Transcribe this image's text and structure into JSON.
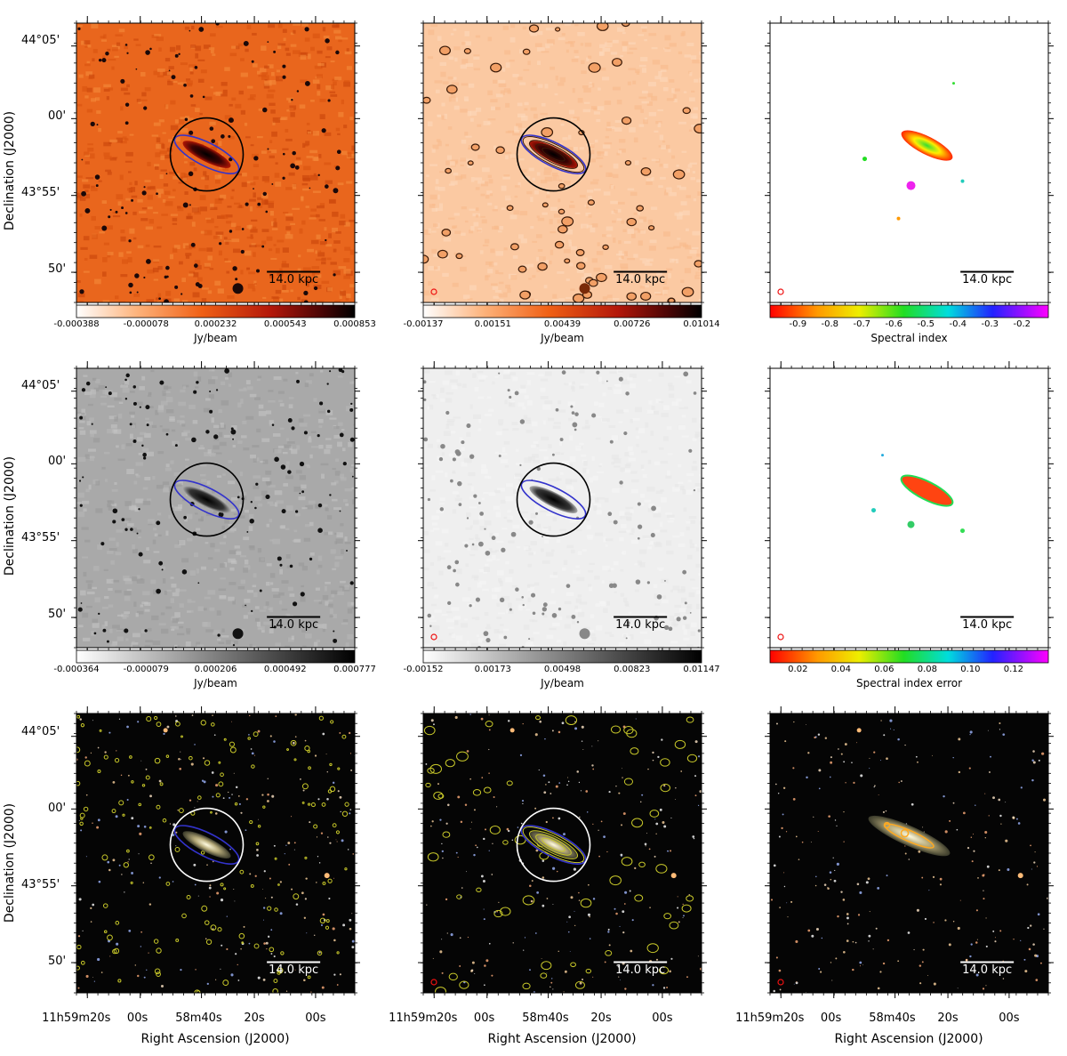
{
  "figure": {
    "dec_axis_label": "Declination (J2000)",
    "ra_axis_label": "Right Ascension (J2000)",
    "dec_ticks": [
      "44°05'",
      "00'",
      "43°55'",
      "50'"
    ],
    "ra_ticks": [
      "11h59m20s",
      "00s",
      "58m40s",
      "20s",
      "00s"
    ],
    "scalebar_label": "14.0 kpc",
    "colors": {
      "black_ring": "#000000",
      "white_ring": "#ffffff",
      "ellipse": "#2a2ae6",
      "contour": "#d7d72a"
    }
  },
  "chart_data": [
    {
      "type": "heatmap",
      "panel": "row1-col1",
      "colormap": "orange-red-black",
      "colorbar_ticks": [
        "-0.000388",
        "-0.000078",
        "0.000232",
        "0.000543",
        "0.000853"
      ],
      "colorbar_label": "Jy/beam"
    },
    {
      "type": "heatmap",
      "panel": "row1-col2",
      "colormap": "orange-red-black",
      "contours": true,
      "colorbar_ticks": [
        "-0.00137",
        "0.00151",
        "0.00439",
        "0.00726",
        "0.01014"
      ],
      "colorbar_label": "Jy/beam"
    },
    {
      "type": "heatmap",
      "panel": "row1-col3",
      "colormap": "rainbow",
      "colorbar_ticks": [
        "-0.9",
        "-0.8",
        "-0.7",
        "-0.6",
        "-0.5",
        "-0.4",
        "-0.3",
        "-0.2"
      ],
      "colorbar_label": "Spectral index"
    },
    {
      "type": "heatmap",
      "panel": "row2-col1",
      "colormap": "gray",
      "colorbar_ticks": [
        "-0.000364",
        "-0.000079",
        "0.000206",
        "0.000492",
        "0.000777"
      ],
      "colorbar_label": "Jy/beam"
    },
    {
      "type": "heatmap",
      "panel": "row2-col2",
      "colormap": "gray",
      "colorbar_ticks": [
        "-0.00152",
        "0.00173",
        "0.00498",
        "0.00823",
        "0.01147"
      ],
      "colorbar_label": "Jy/beam"
    },
    {
      "type": "heatmap",
      "panel": "row2-col3",
      "colormap": "rainbow",
      "colorbar_ticks": [
        "0.02",
        "0.04",
        "0.06",
        "0.08",
        "0.10",
        "0.12"
      ],
      "colorbar_label": "Spectral index error"
    },
    {
      "type": "heatmap",
      "panel": "row3-col1",
      "colormap": "optical-rgb",
      "contours": true
    },
    {
      "type": "heatmap",
      "panel": "row3-col2",
      "colormap": "optical-rgb",
      "contours": true
    },
    {
      "type": "heatmap",
      "panel": "row3-col3",
      "colormap": "optical-rgb",
      "contours": true
    }
  ]
}
